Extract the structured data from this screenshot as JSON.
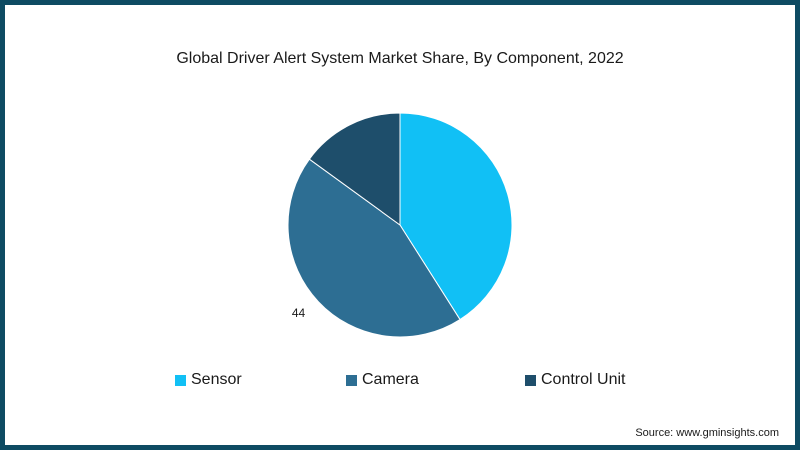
{
  "chart_data": {
    "type": "pie",
    "title": "Global Driver Alert System Market Share, By Component, 2022",
    "categories": [
      "Sensor",
      "Camera",
      "Control Unit"
    ],
    "values": [
      41,
      44,
      15
    ],
    "colors": [
      "#11c0f5",
      "#2d6e93",
      "#1e4e6b"
    ],
    "data_labels": [
      "",
      "44",
      ""
    ],
    "legend_position": "bottom"
  },
  "source": "Source: www.gminsights.com"
}
